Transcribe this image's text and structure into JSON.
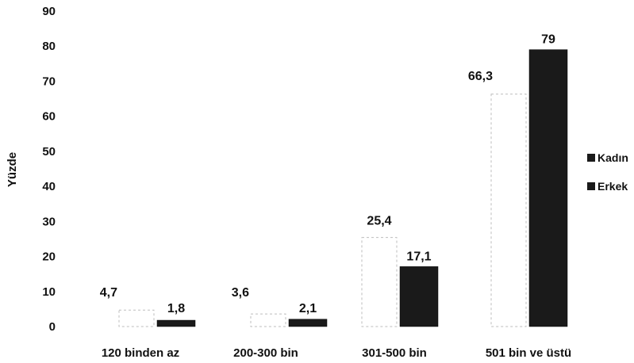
{
  "chart_data": {
    "type": "bar",
    "title": "",
    "xlabel": "",
    "ylabel": "Yüzde",
    "ylim": [
      0,
      90
    ],
    "yticks": [
      0,
      10,
      20,
      30,
      40,
      50,
      60,
      70,
      80,
      90
    ],
    "categories": [
      "120 binden az",
      "200-300 bin",
      "301-500 bin",
      "501 bin ve üstü"
    ],
    "series": [
      {
        "name": "Kadın",
        "values": [
          4.7,
          3.6,
          25.4,
          66.3
        ],
        "labels": [
          "4,7",
          "3,6",
          "25,4",
          "66,3"
        ],
        "color": "#ffffff"
      },
      {
        "name": "Erkek",
        "values": [
          1.8,
          2.1,
          17.1,
          79
        ],
        "labels": [
          "1,8",
          "2,1",
          "17,1",
          "79"
        ],
        "color": "#1a1a1a"
      }
    ],
    "grid": false,
    "legend_position": "right"
  }
}
